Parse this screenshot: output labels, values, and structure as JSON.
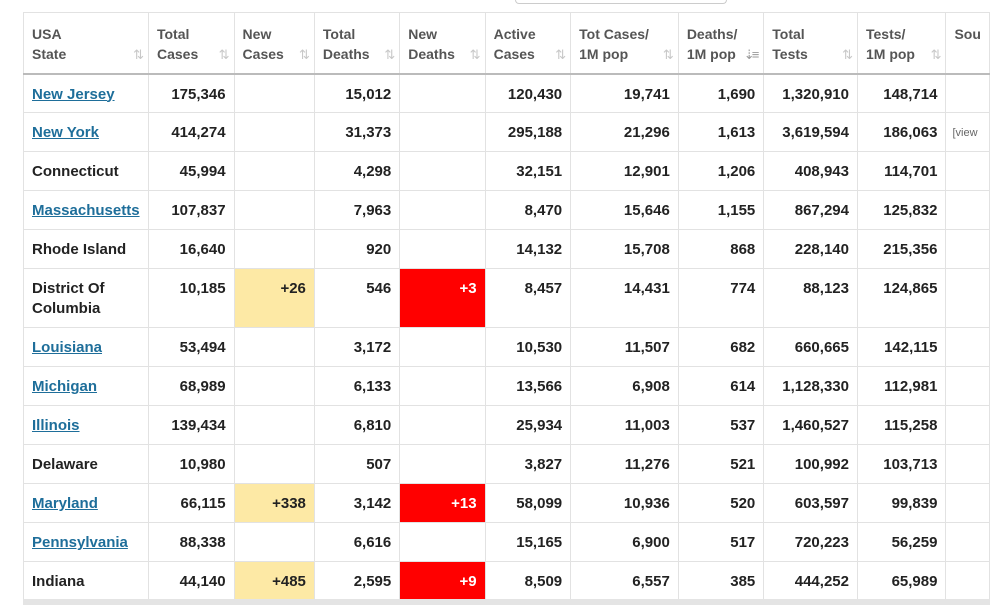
{
  "columns": [
    {
      "line1": "USA",
      "line2": "State"
    },
    {
      "line1": "Total",
      "line2": "Cases"
    },
    {
      "line1": "New",
      "line2": "Cases"
    },
    {
      "line1": "Total",
      "line2": "Deaths"
    },
    {
      "line1": "New",
      "line2": "Deaths"
    },
    {
      "line1": "Active",
      "line2": "Cases"
    },
    {
      "line1": "Tot Cases/",
      "line2": "1M pop"
    },
    {
      "line1": "Deaths/",
      "line2": "1M pop"
    },
    {
      "line1": "Total",
      "line2": "Tests"
    },
    {
      "line1": "Tests/",
      "line2": "1M pop"
    },
    {
      "line1": "Sou",
      "line2": ""
    }
  ],
  "sort_icons": {
    "default": "⇅",
    "active": "⇣≡"
  },
  "rows": [
    {
      "state": "New Jersey",
      "link": true,
      "total_cases": "175,346",
      "new_cases": "",
      "total_deaths": "15,012",
      "new_deaths": "",
      "active_cases": "120,430",
      "cases_per_1m": "19,741",
      "deaths_per_1m": "1,690",
      "total_tests": "1,320,910",
      "tests_per_1m": "148,714",
      "source": ""
    },
    {
      "state": "New York",
      "link": true,
      "total_cases": "414,274",
      "new_cases": "",
      "total_deaths": "31,373",
      "new_deaths": "",
      "active_cases": "295,188",
      "cases_per_1m": "21,296",
      "deaths_per_1m": "1,613",
      "total_tests": "3,619,594",
      "tests_per_1m": "186,063",
      "source": "[view"
    },
    {
      "state": "Connecticut",
      "link": false,
      "total_cases": "45,994",
      "new_cases": "",
      "total_deaths": "4,298",
      "new_deaths": "",
      "active_cases": "32,151",
      "cases_per_1m": "12,901",
      "deaths_per_1m": "1,206",
      "total_tests": "408,943",
      "tests_per_1m": "114,701",
      "source": ""
    },
    {
      "state": "Massachusetts",
      "link": true,
      "total_cases": "107,837",
      "new_cases": "",
      "total_deaths": "7,963",
      "new_deaths": "",
      "active_cases": "8,470",
      "cases_per_1m": "15,646",
      "deaths_per_1m": "1,155",
      "total_tests": "867,294",
      "tests_per_1m": "125,832",
      "source": ""
    },
    {
      "state": "Rhode Island",
      "link": false,
      "total_cases": "16,640",
      "new_cases": "",
      "total_deaths": "920",
      "new_deaths": "",
      "active_cases": "14,132",
      "cases_per_1m": "15,708",
      "deaths_per_1m": "868",
      "total_tests": "228,140",
      "tests_per_1m": "215,356",
      "source": ""
    },
    {
      "state": "District Of Columbia",
      "link": false,
      "tall": true,
      "total_cases": "10,185",
      "new_cases": "+26",
      "total_deaths": "546",
      "new_deaths": "+3",
      "active_cases": "8,457",
      "cases_per_1m": "14,431",
      "deaths_per_1m": "774",
      "total_tests": "88,123",
      "tests_per_1m": "124,865",
      "source": ""
    },
    {
      "state": "Louisiana",
      "link": true,
      "total_cases": "53,494",
      "new_cases": "",
      "total_deaths": "3,172",
      "new_deaths": "",
      "active_cases": "10,530",
      "cases_per_1m": "11,507",
      "deaths_per_1m": "682",
      "total_tests": "660,665",
      "tests_per_1m": "142,115",
      "source": ""
    },
    {
      "state": "Michigan",
      "link": true,
      "total_cases": "68,989",
      "new_cases": "",
      "total_deaths": "6,133",
      "new_deaths": "",
      "active_cases": "13,566",
      "cases_per_1m": "6,908",
      "deaths_per_1m": "614",
      "total_tests": "1,128,330",
      "tests_per_1m": "112,981",
      "source": ""
    },
    {
      "state": "Illinois",
      "link": true,
      "total_cases": "139,434",
      "new_cases": "",
      "total_deaths": "6,810",
      "new_deaths": "",
      "active_cases": "25,934",
      "cases_per_1m": "11,003",
      "deaths_per_1m": "537",
      "total_tests": "1,460,527",
      "tests_per_1m": "115,258",
      "source": ""
    },
    {
      "state": "Delaware",
      "link": false,
      "total_cases": "10,980",
      "new_cases": "",
      "total_deaths": "507",
      "new_deaths": "",
      "active_cases": "3,827",
      "cases_per_1m": "11,276",
      "deaths_per_1m": "521",
      "total_tests": "100,992",
      "tests_per_1m": "103,713",
      "source": ""
    },
    {
      "state": "Maryland",
      "link": true,
      "total_cases": "66,115",
      "new_cases": "+338",
      "total_deaths": "3,142",
      "new_deaths": "+13",
      "active_cases": "58,099",
      "cases_per_1m": "10,936",
      "deaths_per_1m": "520",
      "total_tests": "603,597",
      "tests_per_1m": "99,839",
      "source": ""
    },
    {
      "state": "Pennsylvania",
      "link": true,
      "total_cases": "88,338",
      "new_cases": "",
      "total_deaths": "6,616",
      "new_deaths": "",
      "active_cases": "15,165",
      "cases_per_1m": "6,900",
      "deaths_per_1m": "517",
      "total_tests": "720,223",
      "tests_per_1m": "56,259",
      "source": ""
    },
    {
      "state": "Indiana",
      "link": false,
      "total_cases": "44,140",
      "new_cases": "+485",
      "total_deaths": "2,595",
      "new_deaths": "+9",
      "active_cases": "8,509",
      "cases_per_1m": "6,557",
      "deaths_per_1m": "385",
      "total_tests": "444,252",
      "tests_per_1m": "65,989",
      "source": ""
    }
  ],
  "colors": {
    "link": "#1e6e9a",
    "new_cases_highlight": "#fde9a5",
    "new_deaths_highlight": "#ff0000"
  }
}
